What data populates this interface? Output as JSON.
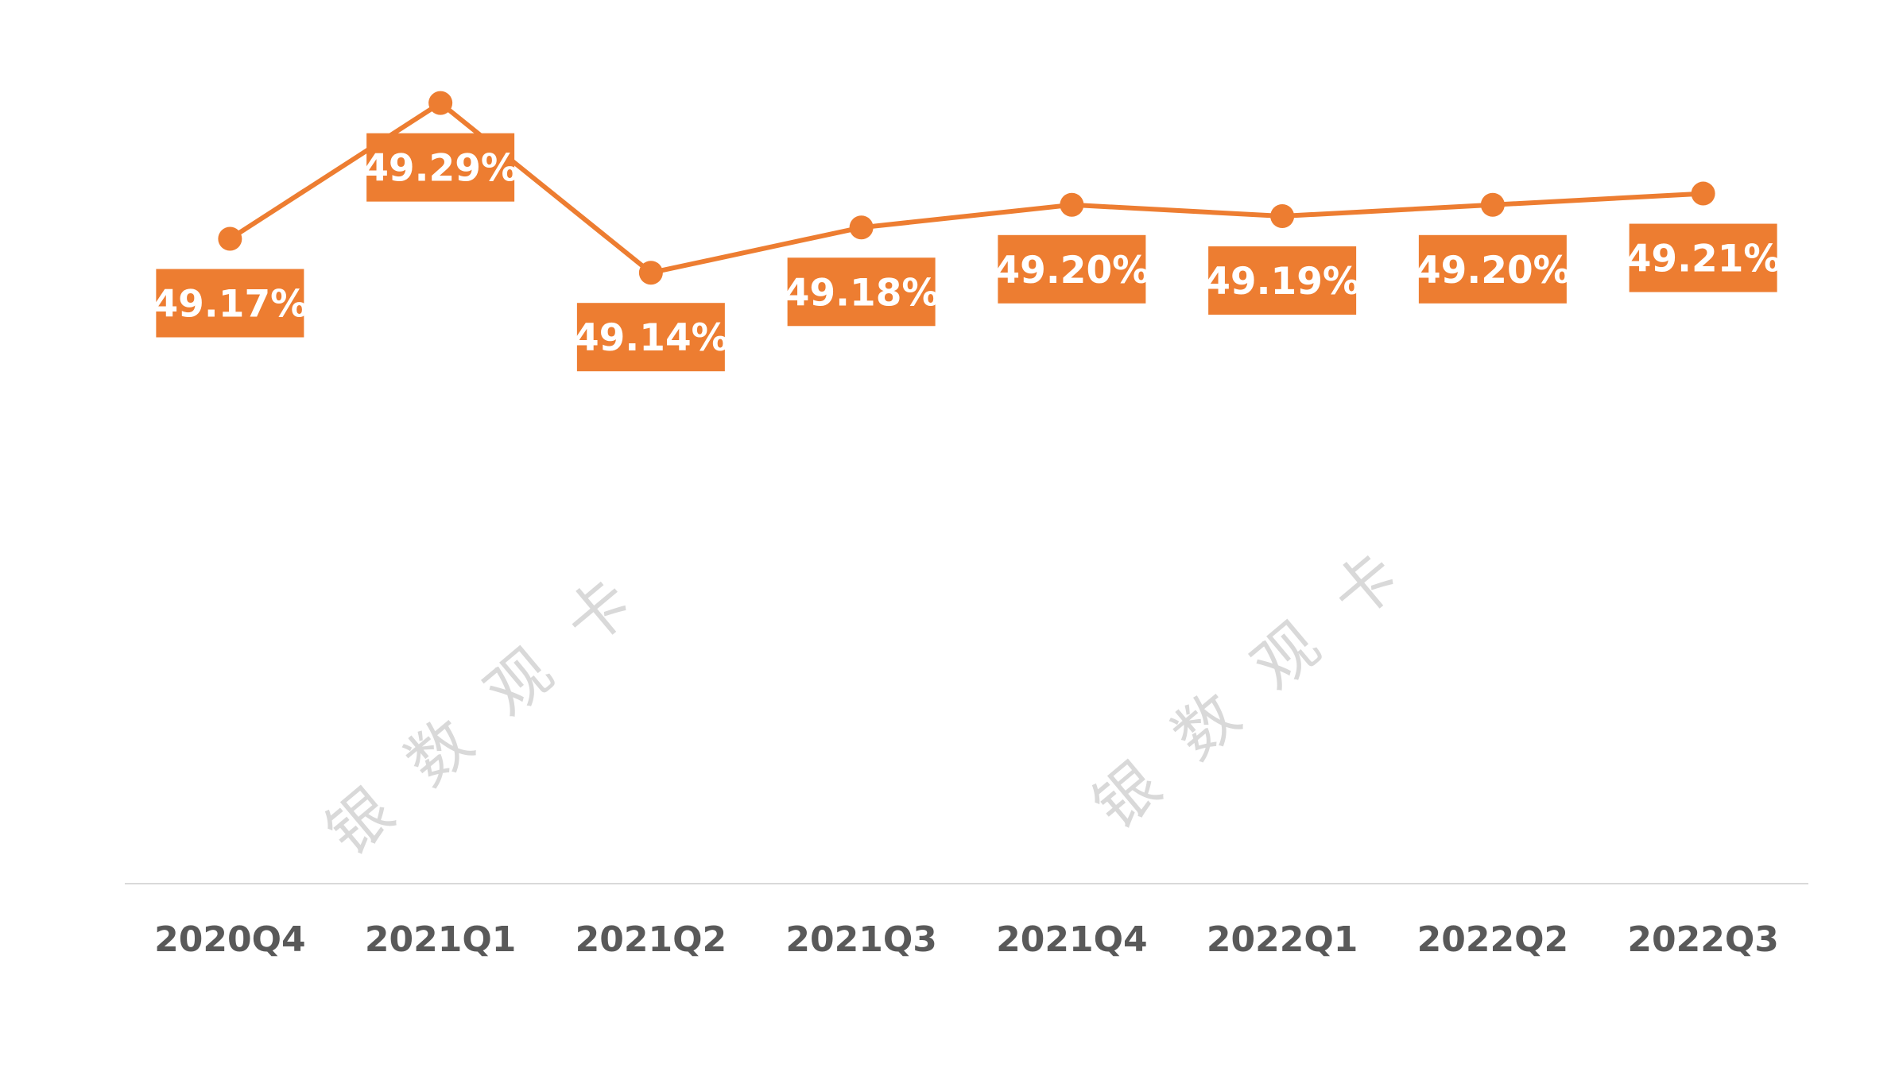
{
  "colors": {
    "line": "#ED7D31",
    "label_bg": "#ED7D31",
    "label_text": "#FFFFFF",
    "axis": "#D9D9D9",
    "category_text": "#595959",
    "watermark": "#D9D9D9"
  },
  "watermark": [
    "银",
    "数",
    "观",
    "卡"
  ],
  "chart_data": {
    "type": "line",
    "title": "",
    "xlabel": "",
    "ylabel": "",
    "categories": [
      "2020Q4",
      "2021Q1",
      "2021Q2",
      "2021Q3",
      "2021Q4",
      "2022Q1",
      "2022Q2",
      "2022Q3"
    ],
    "series": [
      {
        "values": [
          49.17,
          49.29,
          49.14,
          49.18,
          49.2,
          49.19,
          49.2,
          49.21
        ],
        "labels": [
          "49.17%",
          "49.29%",
          "49.14%",
          "49.18%",
          "49.20%",
          "49.19%",
          "49.20%",
          "49.21%"
        ],
        "label_position": [
          "below",
          "below",
          "below",
          "below",
          "below",
          "below",
          "below",
          "below"
        ]
      }
    ],
    "ylim": [
      48.6,
      49.36
    ],
    "grid": false,
    "legend": "none",
    "markers": true
  }
}
